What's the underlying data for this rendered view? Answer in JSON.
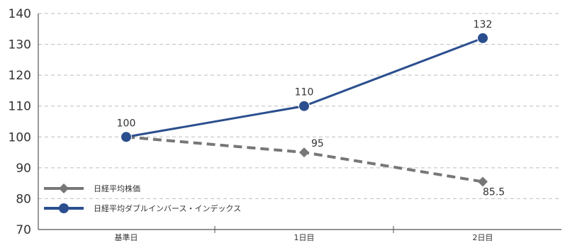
{
  "chart_data": {
    "type": "line",
    "title": "",
    "xlabel": "",
    "ylabel": "",
    "categories": [
      "基準日",
      "1日目",
      "2日目"
    ],
    "ylim": [
      70,
      140
    ],
    "yticks": [
      70,
      80,
      90,
      100,
      110,
      120,
      130,
      140
    ],
    "grid": "horizontal-dashed",
    "legend_position": "bottom-left",
    "series": [
      {
        "name": "日経平均株価",
        "values": [
          100,
          95,
          85.5
        ],
        "data_labels": [
          "",
          "95",
          "85.5"
        ],
        "color": "#777777",
        "line_style": "dashed",
        "marker": "diamond"
      },
      {
        "name": "日経平均ダブルインバース・インデックス",
        "values": [
          100,
          110,
          132
        ],
        "data_labels": [
          "100",
          "110",
          "132"
        ],
        "color": "#2b4f8e",
        "line_style": "solid",
        "marker": "circle"
      }
    ]
  }
}
